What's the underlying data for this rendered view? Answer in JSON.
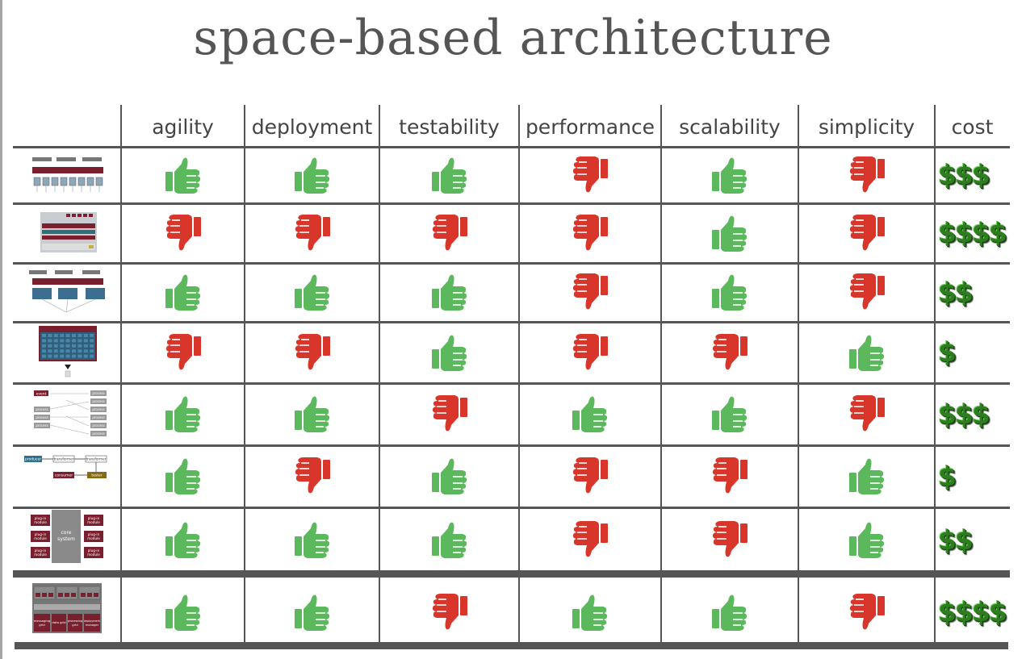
{
  "title": "space-based architecture",
  "columns": [
    "agility",
    "deployment",
    "testability",
    "performance",
    "scalability",
    "simplicity",
    "cost"
  ],
  "colors": {
    "thumbs_up": "#5cb85c",
    "thumbs_down": "#d9362b",
    "dollar": "#2e7d1e",
    "rule": "#555555"
  },
  "rows": [
    {
      "arch": "layered",
      "ratings": [
        "up",
        "up",
        "up",
        "down",
        "up",
        "down"
      ],
      "cost": "$$$"
    },
    {
      "arch": "service-based",
      "ratings": [
        "down",
        "down",
        "down",
        "down",
        "up",
        "down"
      ],
      "cost": "$$$$"
    },
    {
      "arch": "microservices",
      "ratings": [
        "up",
        "up",
        "up",
        "down",
        "up",
        "down"
      ],
      "cost": "$$"
    },
    {
      "arch": "monolith",
      "ratings": [
        "down",
        "down",
        "up",
        "down",
        "down",
        "up"
      ],
      "cost": "$"
    },
    {
      "arch": "event-driven",
      "ratings": [
        "up",
        "up",
        "down",
        "up",
        "up",
        "down"
      ],
      "cost": "$$$"
    },
    {
      "arch": "pipeline",
      "ratings": [
        "up",
        "down",
        "up",
        "down",
        "down",
        "up"
      ],
      "cost": "$"
    },
    {
      "arch": "microkernel",
      "ratings": [
        "up",
        "up",
        "up",
        "down",
        "down",
        "up"
      ],
      "cost": "$$"
    },
    {
      "arch": "space-based",
      "ratings": [
        "up",
        "up",
        "down",
        "up",
        "up",
        "down"
      ],
      "cost": "$$$$"
    }
  ],
  "diagram_labels": {
    "event_driven": {
      "event": "event",
      "process": "process"
    },
    "pipeline": {
      "producer": "producer",
      "transformer": "transformer",
      "consumer": "consumer",
      "tester": "tester"
    },
    "microkernel": {
      "core": "core system",
      "plugin": "plug-in module"
    },
    "space_based": {
      "messaging": "messaging grid",
      "data_grid": "data grid",
      "processing": "processing grid",
      "deployment": "deployment manager"
    }
  }
}
